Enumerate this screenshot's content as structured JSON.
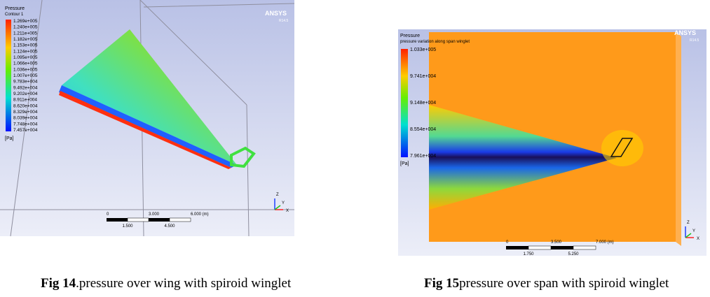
{
  "figures": [
    {
      "brand": "ANSYS",
      "version": "R14.5",
      "variable": "Pressure",
      "subtitle": "Contour 1",
      "legend": [
        "1.269e+005",
        "1.240e+005",
        "1.211e+005",
        "1.182e+005",
        "1.153e+005",
        "1.124e+005",
        "1.095e+005",
        "1.066e+005",
        "1.036e+005",
        "1.007e+005",
        "9.783e+004",
        "9.492e+004",
        "9.202e+004",
        "8.911e+004",
        "8.620e+004",
        "8.329e+004",
        "8.039e+004",
        "7.748e+004",
        "7.457e+004"
      ],
      "unit": "[Pa]",
      "scale_top": [
        "0",
        "3.000",
        "6.000 (m)"
      ],
      "scale_bottom": [
        "1.500",
        "4.500"
      ],
      "axes": [
        "Z",
        "Y",
        "X"
      ],
      "caption": {
        "label": "Fig 14",
        "text": ".pressure over wing with spiroid winglet"
      }
    },
    {
      "brand": "ANSYS",
      "version": "R14.5",
      "variable": "Pressure",
      "subtitle": "pressure variation along span winglet",
      "legend": [
        "1.033e+005",
        "9.741e+004",
        "9.148e+004",
        "8.554e+004",
        "7.961e+004"
      ],
      "unit": "[Pa]",
      "scale_top": [
        "0",
        "3.500",
        "7.000 (m)"
      ],
      "scale_bottom": [
        "1.750",
        "5.250"
      ],
      "axes": [
        "Z",
        "Y",
        "X"
      ],
      "caption": {
        "label": "Fig 15",
        "text": "pressure over span with spiroid winglet"
      }
    }
  ]
}
